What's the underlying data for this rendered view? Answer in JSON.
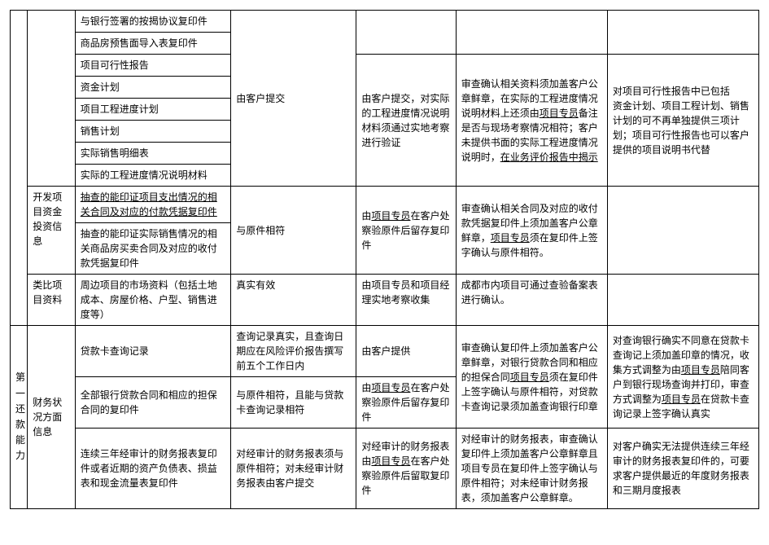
{
  "section1": {
    "col1_label": "开发项目资金投资信息",
    "col1_label2": "类比项目资料",
    "group1": {
      "col3_items": [
        "与银行签署的按揭协议复印件",
        "商品房预售面导入表复印件",
        "项目可行性报告",
        "资金计划",
        "项目工程进度计划",
        "销售计划",
        "实际销售明细表",
        "实际的工程进度情况说明材料"
      ],
      "col4": "由客户提交",
      "col5": "由客户提交，对实际的工程进度情况说明材料须通过实地考察进行验证",
      "col6_a": "审查确认相关资料须加盖客户公章鲜章，在实际的工程进度情况说明材料上还须由",
      "col6_b": "项目专员",
      "col6_c": "备注是否与现场考察情况相符；客户未提供书面的实际工程进度情况说明时，",
      "col6_d": "在业务评价报告中揭示",
      "col7": "对项目可行性报告中已包括\n资金计划、项目工程计划、销售计划的可不再单独提供三项计划；项目可行性报告也可以客户提供的项目说明书代替"
    },
    "group2": {
      "row1_col3": "抽查的能印证项目支出情况的相关合同及对应的付款凭据复印件",
      "row2_col3": "抽查的能印证实际销售情况的相关商品房买卖合同及对应的收付款凭据复印件",
      "col4": "与原件相符",
      "col5_a": "由",
      "col5_b": "项目专员",
      "col5_c": "在客户处察验原件后留存复印件",
      "col6_a": "审查确认相关合同及对应的收付款凭据复印件上须加盖客户公章鲜章，",
      "col6_b": "项目专员",
      "col6_c": "须在复印件上签字确认与原件相符。"
    },
    "group3": {
      "col3": "周边项目的市场资料（包括土地成本、房屋价格、户型、销售进度等）",
      "col4": "真实有效",
      "col5": "由项目专员和项目经理实地考察收集",
      "col6": "成都市内项目可通过查验备案表进行确认。"
    }
  },
  "section2": {
    "col0_label": "第一还款能力",
    "col1_label": "财务状况方面信息",
    "rows": [
      {
        "col3": "贷款卡查询记录",
        "col4": "查询记录真实，且查询日期应在风险评价报告撰写前五个工作日内",
        "col5": "由客户提供",
        "col6_a": "审查确认复印件上须加盖客户公章鲜章，对银行贷款合同和相应的担保合同",
        "col6_b": "项目专员",
        "col6_c": "须在复印件上签字确认与原件相符，对贷款卡查询记录须加盖查询银行印章",
        "col7_a": "对查询银行确实不同意在贷款卡查询记上须加盖印章的情况，收集方式调整为由",
        "col7_b": "项目专员",
        "col7_c": "陪同客户到银行现场查询并打印，审查方式调整为",
        "col7_d": "项目专员",
        "col7_e": "在贷款卡查询记录上签字确认真实"
      },
      {
        "col3": "全部银行贷款合同和相应的担保合同的复印件",
        "col4": "与原件相符，且能与贷款卡查询记录相符",
        "col5_a": "由",
        "col5_b": "项目专员",
        "col5_c": "在客户处察验原件后留存复印件"
      },
      {
        "col3": "连续三年经审计的财务报表复印件或者近期的资产负债表、损益表和现金流量表复印件",
        "col4": "对经审计的财务报表须与原件相符；对未经审计财务报表由客户提交",
        "col5_a": "对经审计的财务报表由",
        "col5_b": "项目专员",
        "col5_c": "在客户处察验原件后留取复印件",
        "col6": "对经审计的财务报表，审查确认复印件上须加盖客户公章鲜章且项目专员在复印件上签字确认与原件相符；对未经审计财务报表，须加盖客户公章鲜章。",
        "col7": "对客户确实无法提供连续三年经审计的财务报表复印件的，可要求客户提供最近的年度财务报表和三期月度报表"
      }
    ]
  }
}
